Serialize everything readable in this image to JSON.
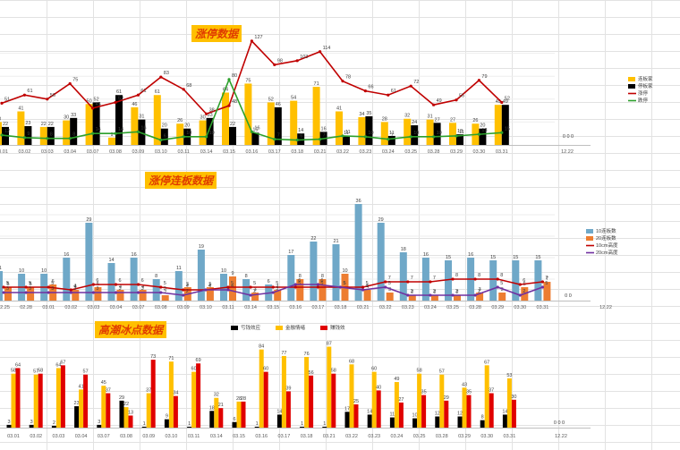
{
  "panels": [
    {
      "title": "涨停数据",
      "legend": [
        {
          "name": "连板家",
          "color": "#ffc000",
          "type": "bar"
        },
        {
          "name": "停板家",
          "color": "#000000",
          "type": "bar"
        },
        {
          "name": "涨停",
          "color": "#c00000",
          "type": "line"
        },
        {
          "name": "跌停",
          "color": "#2ca02c",
          "type": "line"
        }
      ]
    },
    {
      "title": "涨停连板数据",
      "legend": [
        {
          "name": "10连板数",
          "color": "#6fa8c8",
          "type": "bar"
        },
        {
          "name": "20连板数",
          "color": "#ed7d31",
          "type": "bar"
        },
        {
          "name": "10cm高度",
          "color": "#c00000",
          "type": "line"
        },
        {
          "name": "20cm高度",
          "color": "#7030a0",
          "type": "line"
        }
      ]
    },
    {
      "title": "高潮冰点数据",
      "legend": [
        {
          "name": "亏钱效应",
          "color": "#000000",
          "type": "bar"
        },
        {
          "name": "金融情绪",
          "color": "#ffc000",
          "type": "bar"
        },
        {
          "name": "赚钱效",
          "color": "#e00000",
          "type": "bar"
        }
      ]
    }
  ],
  "chart_data": [
    {
      "type": "bar",
      "title": "涨停数据",
      "categories": [
        "03.01",
        "03.02",
        "03.03",
        "03.04",
        "03.07",
        "03.08",
        "03.09",
        "03.10",
        "03.11",
        "03.14",
        "03.15",
        "03.16",
        "03.17",
        "03.18",
        "03.21",
        "03.22",
        "03.23",
        "03.24",
        "03.25",
        "03.28",
        "03.29",
        "03.30",
        "03.31",
        "12.22"
      ],
      "series": [
        {
          "name": "连板家",
          "kind": "bar",
          "values": [
            28,
            41,
            22,
            30,
            50,
            9,
            46,
            61,
            26,
            30,
            64,
            75,
            52,
            54,
            71,
            41,
            34,
            28,
            32,
            31,
            27,
            26,
            49,
            0
          ]
        },
        {
          "name": "停板家",
          "kind": "bar",
          "values": [
            22,
            23,
            22,
            33,
            52,
            61,
            31,
            20,
            20,
            33,
            22,
            15,
            46,
            14,
            16,
            11,
            35,
            11,
            24,
            27,
            13,
            20,
            49,
            null
          ]
        },
        {
          "name": "涨停",
          "kind": "line",
          "values": [
            51,
            61,
            56,
            75,
            45,
            52,
            61,
            83,
            68,
            38,
            48,
            127,
            98,
            103,
            114,
            78,
            66,
            61,
            72,
            49,
            55,
            79,
            52,
            0
          ]
        },
        {
          "name": "跌停",
          "kind": "line",
          "values": [
            12,
            9,
            8,
            8,
            14,
            14,
            16,
            6,
            10,
            10,
            80,
            16,
            7,
            6,
            7,
            11,
            10,
            7,
            10,
            10,
            11,
            13,
            15,
            0
          ]
        }
      ]
    },
    {
      "type": "bar",
      "title": "涨停连板数据",
      "categories": [
        "02.25",
        "02.28",
        "03.01",
        "03.02",
        "03.03",
        "03.04",
        "03.07",
        "03.08",
        "03.09",
        "03.10",
        "03.11",
        "03.14",
        "03.15",
        "03.16",
        "03.17",
        "03.18",
        "03.21",
        "03.22",
        "03.23",
        "03.24",
        "03.25",
        "03.28",
        "03.29",
        "03.30",
        "03.31",
        "12.22"
      ],
      "series": [
        {
          "name": "10连板数",
          "kind": "bar",
          "values": [
            11,
            10,
            10,
            16,
            29,
            14,
            16,
            8,
            11,
            19,
            10,
            8,
            6,
            17,
            22,
            21,
            36,
            29,
            18,
            16,
            15,
            16,
            15,
            15,
            15,
            0
          ]
        },
        {
          "name": "20连板数",
          "kind": "bar",
          "values": [
            5,
            5,
            6,
            4,
            5,
            4,
            4,
            2,
            5,
            5,
            9,
            3,
            4,
            8,
            8,
            10,
            4,
            3,
            2,
            2,
            2,
            3,
            3,
            5,
            7,
            0
          ]
        },
        {
          "name": "10cm高度",
          "kind": "line",
          "values": [
            5,
            5,
            5,
            4,
            6,
            6,
            6,
            5,
            4,
            4,
            5,
            5,
            5,
            5,
            5,
            5,
            5,
            7,
            7,
            7,
            8,
            8,
            8,
            6,
            7,
            null
          ]
        },
        {
          "name": "20cm高度",
          "kind": "line",
          "values": [
            3,
            3,
            3,
            3,
            3,
            3,
            3,
            3,
            2,
            4,
            4,
            2,
            3,
            6,
            6,
            5,
            4,
            5,
            2,
            2,
            2,
            2,
            5,
            2,
            5,
            null
          ]
        }
      ]
    },
    {
      "type": "bar",
      "title": "高潮冰点数据",
      "categories": [
        "03.01",
        "03.02",
        "03.03",
        "03.04",
        "03.07",
        "03.08",
        "03.09",
        "03.10",
        "03.11",
        "03.14",
        "03.15",
        "03.16",
        "03.17",
        "03.18",
        "03.21",
        "03.22",
        "03.23",
        "03.24",
        "03.25",
        "03.28",
        "03.29",
        "03.30",
        "03.31",
        "12.22"
      ],
      "series": [
        {
          "name": "亏钱效应",
          "kind": "bar",
          "values": [
            3,
            3,
            2,
            23,
            3,
            29,
            1,
            9,
            1,
            18,
            6,
            1,
            14,
            1,
            1,
            17,
            14,
            11,
            10,
            12,
            12,
            8,
            14,
            0
          ]
        },
        {
          "name": "金融情绪",
          "kind": "bar",
          "values": [
            58,
            57,
            64,
            41,
            45,
            22,
            37,
            71,
            60,
            32,
            28,
            84,
            77,
            76,
            87,
            68,
            60,
            49,
            58,
            57,
            43,
            67,
            53,
            0
          ]
        },
        {
          "name": "赚钱效",
          "kind": "bar",
          "values": [
            64,
            58,
            67,
            57,
            37,
            13,
            73,
            34,
            69,
            21,
            28,
            60,
            39,
            56,
            58,
            25,
            40,
            27,
            35,
            29,
            35,
            37,
            30,
            0
          ]
        }
      ]
    }
  ]
}
